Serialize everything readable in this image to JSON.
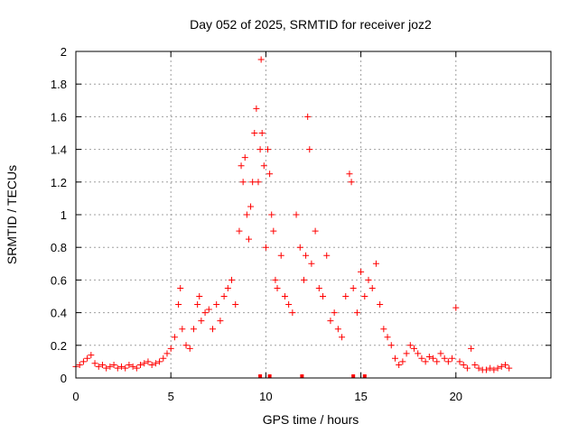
{
  "chart_data": {
    "type": "scatter",
    "title": "Day 052 of 2025, SRMTID for receiver joz2",
    "xlabel": "GPS time / hours",
    "ylabel": "SRMTID / TECUs",
    "xlim": [
      0,
      25
    ],
    "ylim": [
      0,
      2
    ],
    "x_ticks": [
      0,
      5,
      10,
      15,
      20
    ],
    "x_tick_labels": [
      "0",
      "5",
      "10",
      "15",
      "20"
    ],
    "y_ticks": [
      0,
      0.2,
      0.4,
      0.6,
      0.8,
      1,
      1.2,
      1.4,
      1.6,
      1.8,
      2
    ],
    "y_tick_labels": [
      "0",
      "0.2",
      "0.4",
      "0.6",
      "0.8",
      "1",
      "1.2",
      "1.4",
      "1.6",
      "1.8",
      "2"
    ],
    "grid": true,
    "marker": "+",
    "color": "#ff0000",
    "series": [
      {
        "name": "SRMTID",
        "x": [
          0.0,
          0.2,
          0.4,
          0.6,
          0.8,
          1.0,
          1.2,
          1.4,
          1.6,
          1.8,
          2.0,
          2.2,
          2.4,
          2.6,
          2.8,
          3.0,
          3.2,
          3.4,
          3.6,
          3.8,
          4.0,
          4.2,
          4.4,
          4.6,
          4.8,
          5.0,
          5.2,
          5.4,
          5.5,
          5.6,
          5.8,
          6.0,
          6.2,
          6.4,
          6.5,
          6.6,
          6.8,
          7.0,
          7.2,
          7.4,
          7.6,
          7.8,
          8.0,
          8.2,
          8.4,
          8.6,
          8.7,
          8.8,
          8.9,
          9.0,
          9.1,
          9.2,
          9.3,
          9.4,
          9.5,
          9.6,
          9.7,
          9.75,
          9.8,
          9.9,
          10.0,
          10.1,
          10.2,
          10.3,
          10.4,
          10.5,
          10.6,
          10.8,
          11.0,
          11.2,
          11.4,
          11.6,
          11.8,
          12.0,
          12.1,
          12.2,
          12.3,
          12.4,
          12.6,
          12.8,
          13.0,
          13.2,
          13.4,
          13.6,
          13.8,
          14.0,
          14.2,
          14.4,
          14.5,
          14.6,
          14.8,
          15.0,
          15.2,
          15.4,
          15.6,
          15.8,
          16.0,
          16.2,
          16.4,
          16.6,
          16.8,
          17.0,
          17.2,
          17.4,
          17.6,
          17.8,
          18.0,
          18.2,
          18.4,
          18.6,
          18.8,
          19.0,
          19.2,
          19.4,
          19.6,
          19.8,
          20.0,
          20.2,
          20.4,
          20.6,
          20.8,
          21.0,
          21.2,
          21.4,
          21.6,
          21.8,
          22.0,
          22.2,
          22.4,
          22.6,
          22.8
        ],
        "y": [
          0.07,
          0.08,
          0.1,
          0.12,
          0.14,
          0.09,
          0.07,
          0.08,
          0.06,
          0.07,
          0.08,
          0.06,
          0.07,
          0.06,
          0.08,
          0.07,
          0.06,
          0.08,
          0.09,
          0.1,
          0.08,
          0.09,
          0.1,
          0.12,
          0.15,
          0.18,
          0.25,
          0.45,
          0.55,
          0.3,
          0.2,
          0.18,
          0.3,
          0.45,
          0.5,
          0.35,
          0.4,
          0.42,
          0.3,
          0.45,
          0.35,
          0.5,
          0.55,
          0.6,
          0.45,
          0.9,
          1.3,
          1.2,
          1.35,
          1.0,
          0.85,
          1.05,
          1.2,
          1.5,
          1.65,
          1.2,
          1.4,
          1.95,
          1.5,
          1.3,
          0.8,
          1.4,
          1.25,
          1.0,
          0.9,
          0.6,
          0.55,
          0.75,
          0.5,
          0.45,
          0.4,
          1.0,
          0.8,
          0.6,
          0.75,
          1.6,
          1.4,
          0.7,
          0.9,
          0.55,
          0.5,
          0.75,
          0.35,
          0.4,
          0.3,
          0.25,
          0.5,
          1.25,
          1.2,
          0.55,
          0.4,
          0.65,
          0.5,
          0.6,
          0.55,
          0.7,
          0.45,
          0.3,
          0.25,
          0.2,
          0.12,
          0.08,
          0.1,
          0.15,
          0.2,
          0.18,
          0.15,
          0.12,
          0.1,
          0.13,
          0.12,
          0.1,
          0.15,
          0.12,
          0.1,
          0.12,
          0.43,
          0.1,
          0.08,
          0.06,
          0.18,
          0.08,
          0.06,
          0.05,
          0.05,
          0.06,
          0.05,
          0.06,
          0.07,
          0.08,
          0.06
        ]
      }
    ]
  }
}
